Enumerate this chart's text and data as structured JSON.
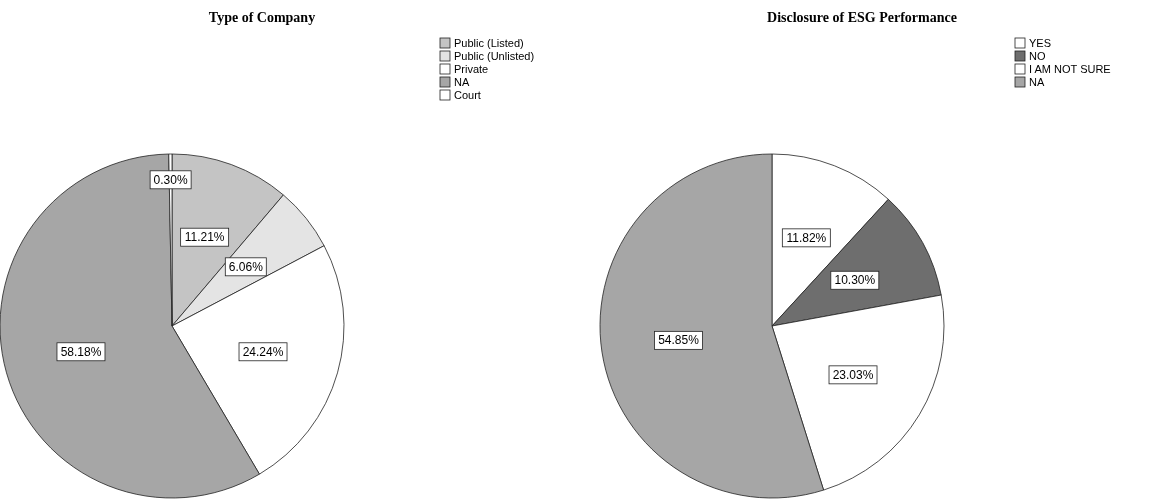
{
  "chart_data": [
    {
      "type": "pie",
      "title": "Type of Company",
      "categories": [
        "Public (Listed)",
        "Public (Unlisted)",
        "Private",
        "NA",
        "Court"
      ],
      "values": [
        11.21,
        6.06,
        24.24,
        58.18,
        0.3
      ],
      "colors": [
        "#c4c4c4",
        "#e4e4e4",
        "#ffffff",
        "#a6a6a6",
        "#ffffff"
      ],
      "value_labels": [
        "11.21%",
        "6.06%",
        "24.24%",
        "58.18%",
        "0.30%"
      ],
      "legend": "top right"
    },
    {
      "type": "pie",
      "title": "Disclosure of ESG Performance",
      "categories": [
        "YES",
        "NO",
        "I AM NOT SURE",
        "NA"
      ],
      "values": [
        11.82,
        10.3,
        23.03,
        54.85
      ],
      "colors": [
        "#ffffff",
        "#6e6e6e",
        "#ffffff",
        "#a6a6a6"
      ],
      "value_labels": [
        "11.82%",
        "10.30%",
        "23.03%",
        "54.85%"
      ],
      "legend": "top right"
    }
  ]
}
